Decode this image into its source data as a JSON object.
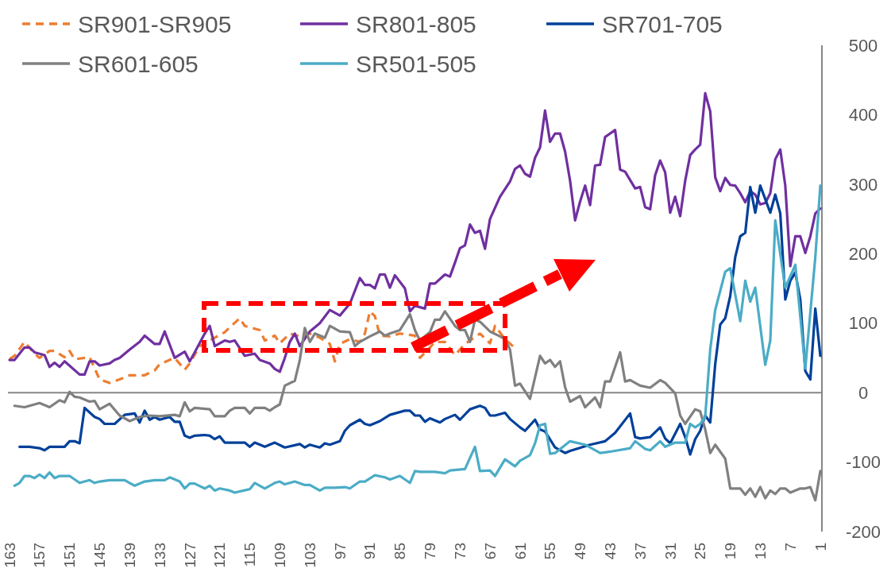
{
  "chart_data": {
    "type": "line",
    "legend": "top",
    "xlim": [
      163,
      1
    ],
    "xticks": [
      163,
      157,
      151,
      145,
      139,
      133,
      127,
      121,
      115,
      109,
      103,
      97,
      91,
      85,
      79,
      73,
      67,
      61,
      55,
      49,
      43,
      37,
      31,
      25,
      19,
      13,
      7,
      1
    ],
    "ylim": [
      -200,
      500
    ],
    "yticks": [
      -200,
      -100,
      0,
      100,
      200,
      300,
      400,
      500
    ],
    "series": [
      {
        "name": "SR901-SR905",
        "color": "#ed7d31",
        "line_style": "dashed",
        "x": [
          163,
          162,
          160,
          158,
          157,
          155,
          154,
          152,
          151,
          150,
          147,
          145,
          143,
          141,
          139,
          136,
          134,
          133,
          130,
          128,
          127,
          125,
          123,
          120,
          119,
          117,
          116,
          113,
          112,
          110,
          109,
          107,
          105,
          103,
          101,
          99,
          98,
          97,
          95,
          93,
          92,
          91,
          90,
          89,
          87,
          85,
          82,
          81,
          79,
          78,
          76,
          74,
          72,
          71,
          69,
          67,
          66,
          64,
          62
        ],
        "values": [
          48,
          53,
          73,
          56,
          50,
          60,
          60,
          51,
          60,
          48,
          51,
          19,
          14,
          19,
          25,
          25,
          32,
          41,
          50,
          33,
          42,
          67,
          75,
          87,
          94,
          107,
          96,
          90,
          75,
          82,
          71,
          85,
          81,
          85,
          79,
          70,
          45,
          70,
          77,
          73,
          85,
          117,
          110,
          82,
          81,
          85,
          82,
          50,
          65,
          73,
          73,
          54,
          70,
          75,
          85,
          71,
          96,
          77,
          64
        ]
      },
      {
        "name": "SR801-805",
        "color": "#7030a0",
        "x": [
          163,
          162,
          160,
          159,
          158,
          156,
          155,
          154,
          153,
          152,
          149,
          148,
          147,
          146,
          145,
          143,
          142,
          141,
          139,
          137,
          136,
          134,
          133,
          132,
          130,
          128,
          127,
          126,
          124,
          123,
          122,
          120,
          119,
          118,
          116,
          114,
          113,
          111,
          110,
          109,
          108,
          107,
          106,
          105,
          103,
          101,
          99,
          97,
          95,
          93,
          92,
          91,
          90,
          89,
          88,
          87,
          86,
          84,
          83,
          82,
          80,
          79,
          78,
          76,
          75,
          74,
          73,
          72,
          71,
          70,
          69,
          68,
          67,
          65,
          63,
          62,
          61,
          60,
          59,
          58,
          57,
          56,
          55,
          54,
          53,
          52,
          51,
          50,
          49,
          48,
          47,
          46,
          45,
          44,
          42,
          41,
          40,
          38,
          37,
          36,
          35,
          34,
          33,
          32,
          31,
          30,
          29,
          28,
          27,
          26,
          25,
          24,
          23,
          22,
          21,
          20,
          19,
          18,
          17,
          16,
          15,
          14,
          13,
          12,
          11,
          10,
          9,
          8,
          7,
          6,
          5,
          4,
          3,
          2,
          1
        ],
        "values": [
          47,
          47,
          65,
          65,
          58,
          54,
          37,
          43,
          37,
          45,
          26,
          26,
          45,
          45,
          39,
          42,
          47,
          50,
          62,
          73,
          82,
          70,
          70,
          88,
          50,
          59,
          45,
          58,
          85,
          96,
          67,
          75,
          73,
          75,
          53,
          56,
          47,
          42,
          34,
          30,
          50,
          73,
          85,
          67,
          88,
          100,
          119,
          111,
          128,
          165,
          155,
          155,
          150,
          170,
          170,
          151,
          169,
          150,
          117,
          125,
          121,
          157,
          157,
          170,
          167,
          187,
          208,
          212,
          242,
          230,
          233,
          207,
          250,
          282,
          304,
          322,
          327,
          315,
          311,
          338,
          353,
          406,
          361,
          373,
          373,
          347,
          305,
          248,
          275,
          298,
          270,
          327,
          328,
          368,
          378,
          321,
          318,
          294,
          296,
          267,
          264,
          313,
          334,
          317,
          259,
          282,
          254,
          305,
          342,
          350,
          357,
          431,
          405,
          310,
          290,
          309,
          299,
          298,
          287,
          274,
          290,
          285,
          271,
          273,
          287,
          336,
          350,
          298,
          182,
          225,
          225,
          201,
          225,
          258,
          265
        ]
      },
      {
        "name": "SR701-705",
        "color": "#00409a",
        "x": [
          161,
          159,
          157,
          156,
          155,
          152,
          151,
          150,
          149,
          148,
          146,
          145,
          144,
          142,
          140,
          138,
          137,
          136,
          135,
          134,
          133,
          131,
          130,
          129,
          128,
          127,
          126,
          124,
          123,
          122,
          121,
          120,
          116,
          115,
          114,
          112,
          110,
          108,
          105,
          104,
          103,
          101,
          100,
          99,
          97,
          96,
          95,
          93,
          92,
          91,
          89,
          87,
          86,
          84,
          83,
          82,
          81,
          80,
          79,
          77,
          76,
          74,
          73,
          71,
          69,
          68,
          67,
          66,
          64,
          63,
          61,
          60,
          58,
          57,
          56,
          54,
          52,
          51,
          47,
          44,
          42,
          39,
          38,
          37,
          35,
          33,
          32,
          31,
          29,
          28,
          27,
          26,
          25,
          24,
          23,
          22,
          21,
          20,
          19,
          18,
          17,
          16,
          15,
          14,
          13,
          11,
          10,
          9,
          8,
          7,
          6,
          5,
          4,
          3,
          2,
          1
        ],
        "values": [
          -78,
          -78,
          -80,
          -83,
          -78,
          -78,
          -70,
          -70,
          -73,
          -22,
          -35,
          -38,
          -45,
          -45,
          -32,
          -30,
          -43,
          -26,
          -39,
          -35,
          -39,
          -35,
          -42,
          -42,
          -62,
          -65,
          -62,
          -61,
          -62,
          -67,
          -63,
          -72,
          -72,
          -78,
          -72,
          -78,
          -72,
          -79,
          -74,
          -79,
          -75,
          -79,
          -73,
          -75,
          -70,
          -55,
          -47,
          -39,
          -45,
          -47,
          -41,
          -32,
          -30,
          -26,
          -26,
          -33,
          -33,
          -42,
          -37,
          -43,
          -38,
          -32,
          -39,
          -24,
          -19,
          -22,
          -33,
          -33,
          -29,
          -38,
          -50,
          -55,
          -39,
          -53,
          -56,
          -79,
          -87,
          -84,
          -75,
          -70,
          -58,
          -30,
          -64,
          -66,
          -64,
          -50,
          -66,
          -73,
          -45,
          -64,
          -89,
          -67,
          -55,
          -33,
          -43,
          41,
          98,
          107,
          139,
          195,
          225,
          230,
          296,
          259,
          298,
          259,
          285,
          258,
          134,
          161,
          173,
          134,
          31,
          19,
          121,
          53
        ]
      },
      {
        "name": "SR601-605",
        "color": "#808080",
        "x": [
          162,
          160,
          157,
          155,
          153,
          152,
          151,
          150,
          149,
          147,
          146,
          145,
          143,
          141,
          139,
          137,
          135,
          133,
          130,
          129,
          128,
          127,
          126,
          123,
          122,
          120,
          119,
          118,
          116,
          115,
          114,
          112,
          111,
          110,
          109,
          108,
          106,
          105,
          104,
          103,
          102,
          100,
          99,
          97,
          95,
          94,
          93,
          91,
          89,
          88,
          87,
          85,
          83,
          82,
          81,
          79,
          78,
          77,
          76,
          74,
          73,
          72,
          71,
          70,
          69,
          67,
          65,
          64,
          63,
          62,
          61,
          59,
          57,
          56,
          55,
          54,
          53,
          52,
          51,
          49,
          48,
          46,
          45,
          44,
          43,
          41,
          40,
          39,
          37,
          35,
          33,
          32,
          30,
          29,
          28,
          26,
          25,
          24,
          23,
          22,
          20,
          19,
          17,
          16,
          15,
          14,
          13,
          12,
          11,
          10,
          9,
          8,
          7,
          5,
          4,
          3,
          2,
          1
        ],
        "values": [
          -19,
          -21,
          -15,
          -21,
          -11,
          -14,
          1,
          -6,
          -7,
          -13,
          -12,
          -24,
          -16,
          -33,
          -41,
          -35,
          -33,
          -34,
          -32,
          -34,
          -14,
          -27,
          -22,
          -24,
          -34,
          -34,
          -26,
          -22,
          -22,
          -30,
          -22,
          -22,
          -26,
          -21,
          -17,
          10,
          17,
          47,
          93,
          73,
          85,
          79,
          96,
          88,
          87,
          67,
          73,
          81,
          88,
          82,
          85,
          90,
          113,
          90,
          75,
          87,
          105,
          105,
          117,
          96,
          90,
          90,
          73,
          105,
          102,
          88,
          81,
          77,
          62,
          10,
          13,
          -9,
          53,
          42,
          47,
          37,
          45,
          8,
          -13,
          -5,
          -21,
          -7,
          -21,
          16,
          16,
          58,
          16,
          18,
          10,
          7,
          18,
          14,
          -1,
          -33,
          -45,
          -24,
          -27,
          -53,
          -87,
          -75,
          -95,
          -138,
          -138,
          -147,
          -138,
          -150,
          -136,
          -152,
          -141,
          -146,
          -138,
          -138,
          -144,
          -138,
          -138,
          -136,
          -155,
          -113
        ]
      },
      {
        "name": "SR501-505",
        "color": "#4bacc6",
        "x": [
          162,
          161,
          160,
          159,
          158,
          157,
          156,
          155,
          154,
          153,
          151,
          149,
          147,
          146,
          145,
          143,
          140,
          138,
          136,
          134,
          132,
          131,
          129,
          128,
          127,
          126,
          124,
          123,
          122,
          121,
          119,
          118,
          115,
          114,
          113,
          112,
          110,
          109,
          108,
          106,
          104,
          103,
          101,
          100,
          98,
          96,
          95,
          93,
          92,
          90,
          88,
          87,
          85,
          83,
          82,
          81,
          78,
          76,
          75,
          72,
          70,
          69,
          67,
          66,
          64,
          62,
          61,
          59,
          58,
          57,
          56,
          55,
          54,
          51,
          48,
          45,
          43,
          39,
          38,
          36,
          35,
          33,
          32,
          30,
          29,
          28,
          27,
          26,
          25,
          24,
          23,
          22,
          20,
          19,
          17,
          16,
          15,
          14,
          12,
          11,
          10,
          8,
          6,
          4,
          2,
          1
        ],
        "values": [
          -134,
          -130,
          -120,
          -120,
          -123,
          -118,
          -123,
          -115,
          -123,
          -120,
          -120,
          -130,
          -126,
          -130,
          -128,
          -126,
          -126,
          -134,
          -128,
          -126,
          -126,
          -122,
          -128,
          -138,
          -131,
          -131,
          -138,
          -134,
          -141,
          -138,
          -141,
          -144,
          -139,
          -130,
          -134,
          -138,
          -130,
          -128,
          -132,
          -128,
          -133,
          -133,
          -141,
          -137,
          -137,
          -136,
          -138,
          -128,
          -128,
          -119,
          -122,
          -125,
          -120,
          -130,
          -113,
          -114,
          -114,
          -116,
          -112,
          -110,
          -78,
          -113,
          -112,
          -120,
          -96,
          -106,
          -98,
          -90,
          -73,
          -47,
          -45,
          -88,
          -87,
          -70,
          -75,
          -87,
          -85,
          -80,
          -70,
          -81,
          -83,
          -70,
          -78,
          -72,
          -72,
          -72,
          -45,
          -50,
          -45,
          -35,
          62,
          119,
          174,
          179,
          103,
          161,
          131,
          151,
          40,
          75,
          248,
          151,
          184,
          35,
          195,
          298
        ]
      }
    ]
  }
}
